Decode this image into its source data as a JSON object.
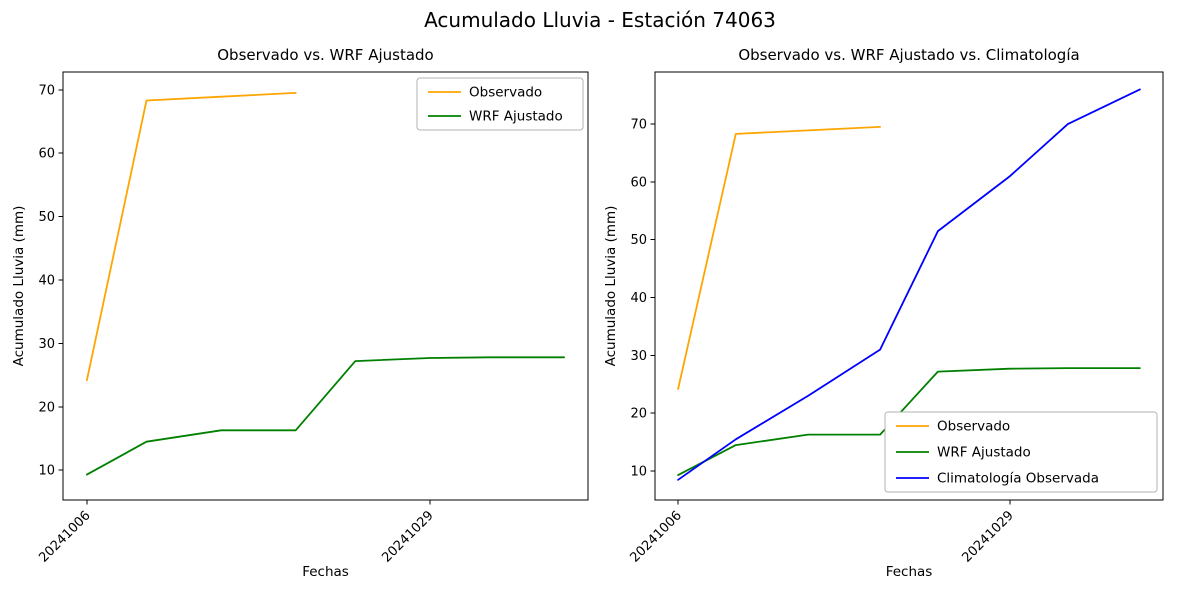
{
  "figure": {
    "suptitle": "Acumulado Lluvia - Estación 74063"
  },
  "chart_data": [
    {
      "type": "line",
      "title": "Observado vs. WRF Ajustado",
      "xlabel": "Fechas",
      "ylabel": "Acumulado Lluvia (mm)",
      "x_unit": "days since 2024-10-06",
      "xlim": [
        -1.6,
        33.6
      ],
      "ylim": [
        5.3,
        72.8
      ],
      "yticks": [
        10,
        20,
        30,
        40,
        50,
        60,
        70
      ],
      "xticks": [
        {
          "label": "20241006",
          "x": 0
        },
        {
          "label": "20241029",
          "x": 23
        }
      ],
      "grid": false,
      "legend": {
        "position": "upper-right",
        "entries": [
          "Observado",
          "WRF Ajustado"
        ]
      },
      "series": [
        {
          "name": "Observado",
          "color": "#ffa500",
          "x": [
            0,
            4,
            9,
            14
          ],
          "y": [
            24.2,
            68.3,
            68.9,
            69.5
          ]
        },
        {
          "name": "WRF Ajustado",
          "color": "#008000",
          "x": [
            0,
            4,
            9,
            14,
            18,
            23,
            27,
            32
          ],
          "y": [
            9.3,
            14.5,
            16.3,
            16.3,
            27.2,
            27.7,
            27.8,
            27.8
          ]
        }
      ]
    },
    {
      "type": "line",
      "title": "Observado vs. WRF Ajustado vs. Climatología",
      "xlabel": "Fechas",
      "ylabel": "Acumulado Lluvia (mm)",
      "x_unit": "days since 2024-10-06",
      "xlim": [
        -1.6,
        33.6
      ],
      "ylim": [
        5.0,
        79.0
      ],
      "yticks": [
        10,
        20,
        30,
        40,
        50,
        60,
        70
      ],
      "xticks": [
        {
          "label": "20241006",
          "x": 0
        },
        {
          "label": "20241029",
          "x": 23
        }
      ],
      "grid": false,
      "legend": {
        "position": "lower-right",
        "entries": [
          "Observado",
          "WRF Ajustado",
          "Climatología Observada"
        ]
      },
      "series": [
        {
          "name": "Observado",
          "color": "#ffa500",
          "x": [
            0,
            4,
            9,
            14
          ],
          "y": [
            24.2,
            68.3,
            68.9,
            69.5
          ]
        },
        {
          "name": "WRF Ajustado",
          "color": "#008000",
          "x": [
            0,
            4,
            9,
            14,
            18,
            23,
            27,
            32
          ],
          "y": [
            9.3,
            14.5,
            16.3,
            16.3,
            27.2,
            27.7,
            27.8,
            27.8
          ]
        },
        {
          "name": "Climatología Observada",
          "color": "#0000ff",
          "x": [
            0,
            4,
            9,
            14,
            18,
            23,
            27,
            32
          ],
          "y": [
            8.5,
            15.5,
            23.0,
            31.0,
            51.5,
            61.0,
            70.0,
            76.0
          ]
        }
      ]
    }
  ]
}
